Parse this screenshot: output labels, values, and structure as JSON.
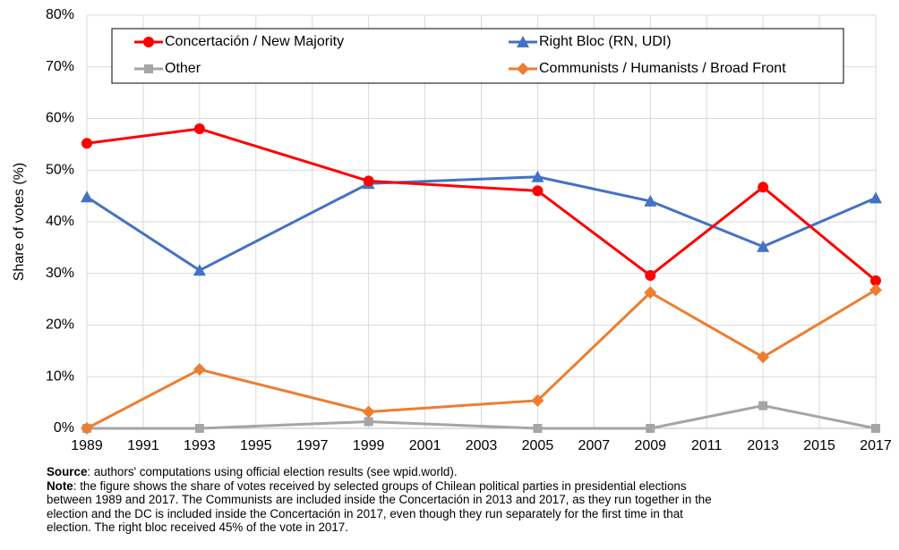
{
  "chart_data": {
    "type": "line",
    "y_label": "Share of votes (%)",
    "x": [
      1989,
      1993,
      1999,
      2005,
      2009,
      2013,
      2017
    ],
    "xlim": [
      1989,
      2017
    ],
    "xticks": [
      1989,
      1991,
      1993,
      1995,
      1997,
      1999,
      2001,
      2003,
      2005,
      2007,
      2009,
      2011,
      2013,
      2015,
      2017
    ],
    "ylim": [
      0,
      80
    ],
    "yticks": [
      {
        "value": 0,
        "label": "0%"
      },
      {
        "value": 10,
        "label": "10%"
      },
      {
        "value": 20,
        "label": "20%"
      },
      {
        "value": 30,
        "label": "30%"
      },
      {
        "value": 40,
        "label": "40%"
      },
      {
        "value": 50,
        "label": "50%"
      },
      {
        "value": 60,
        "label": "60%"
      },
      {
        "value": 70,
        "label": "70%"
      },
      {
        "value": 80,
        "label": "80%"
      }
    ],
    "grid": true,
    "legend": "top",
    "series": [
      {
        "name": "Concertación / New Majority",
        "color": "#ff0000",
        "marker": "circle",
        "values": [
          55.2,
          58.0,
          47.9,
          46.0,
          29.6,
          46.7,
          28.6
        ]
      },
      {
        "name": "Right Bloc (RN, UDI)",
        "color": "#4472c4",
        "marker": "triangle",
        "values": [
          44.8,
          30.6,
          47.4,
          48.7,
          44.0,
          35.2,
          44.6
        ]
      },
      {
        "name": "Other",
        "color": "#a5a5a5",
        "marker": "square",
        "values": [
          0,
          0,
          1.3,
          0,
          0,
          4.4,
          0
        ]
      },
      {
        "name": "Communists / Humanists / Broad Front",
        "color": "#ed7d31",
        "marker": "diamond",
        "values": [
          0,
          11.4,
          3.2,
          5.4,
          26.3,
          13.8,
          26.8
        ]
      }
    ]
  },
  "notes": {
    "source_label": "Source",
    "source_text": ": authors' computations using official election results (see wpid.world).",
    "note_label": "Note",
    "note_lines": [
      ": the figure shows the share of votes received by selected groups of Chilean political parties in presidential elections",
      "between 1989 and 2017. The Communists are included inside the Concertación in 2013 and 2017, as they run together in the",
      "election and the DC is included inside the Concertación in 2017, even though they run separately for the first time in that",
      "election. The right bloc received 45% of the vote in 2017."
    ]
  }
}
